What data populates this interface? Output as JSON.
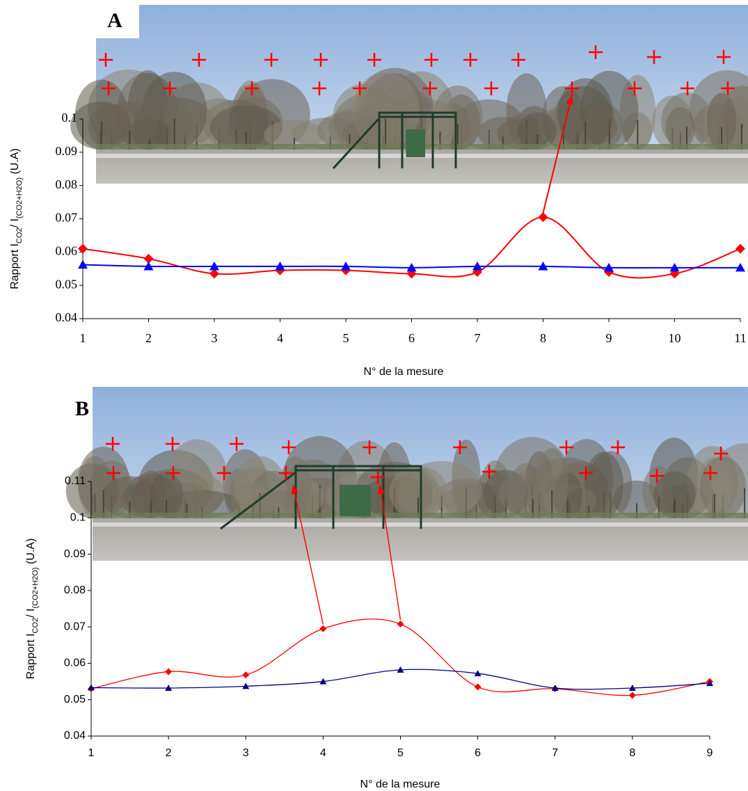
{
  "chart_data": [
    {
      "type": "line",
      "panel_label": "A",
      "xlabel": "N° de la mesure",
      "ylabel": [
        "Rapport I",
        "CO2",
        "/ I",
        "(CO2+H2O)",
        " (U.A)"
      ],
      "x": [
        1,
        2,
        3,
        4,
        5,
        6,
        7,
        8,
        9,
        10,
        11
      ],
      "xlim": [
        1,
        11
      ],
      "xticks": [
        1,
        2,
        3,
        4,
        5,
        6,
        7,
        8,
        9,
        10,
        11
      ],
      "ylim": [
        0.04,
        0.1
      ],
      "yticks": [
        0.04,
        0.05,
        0.06,
        0.07,
        0.08,
        0.09,
        0.1
      ],
      "series": [
        {
          "color": "#ff0000",
          "marker": "diamond",
          "values": [
            0.061,
            0.058,
            0.0535,
            0.0545,
            0.0545,
            0.0535,
            0.054,
            0.0705,
            0.054,
            0.0535,
            0.061
          ]
        },
        {
          "color": "#0000ff",
          "marker": "triangle",
          "values": [
            0.0562,
            0.0557,
            0.0557,
            0.0557,
            0.0557,
            0.0553,
            0.0557,
            0.0557,
            0.0553,
            0.0553,
            0.0553
          ]
        }
      ]
    },
    {
      "type": "line",
      "panel_label": "B",
      "xlabel": "N° de la mesure",
      "ylabel": [
        "Rapport I",
        "CO2",
        "/ I",
        "(CO2+H2O)",
        " (U.A)"
      ],
      "x": [
        1,
        2,
        3,
        4,
        5,
        6,
        7,
        8,
        9
      ],
      "xlim": [
        1,
        9
      ],
      "xticks": [
        1,
        2,
        3,
        4,
        5,
        6,
        7,
        8,
        9
      ],
      "ylim": [
        0.04,
        0.11
      ],
      "yticks": [
        0.04,
        0.05,
        0.06,
        0.07,
        0.08,
        0.09,
        0.1,
        0.11
      ],
      "series": [
        {
          "color": "#ff0000",
          "marker": "diamond",
          "values": [
            0.053,
            0.0577,
            0.0568,
            0.0695,
            0.0708,
            0.0535,
            0.053,
            0.0512,
            0.055
          ]
        },
        {
          "color": "#000080",
          "marker": "triangle",
          "values": [
            0.0533,
            0.0532,
            0.0537,
            0.055,
            0.0582,
            0.0572,
            0.0532,
            0.0532,
            0.0545
          ]
        }
      ]
    }
  ]
}
